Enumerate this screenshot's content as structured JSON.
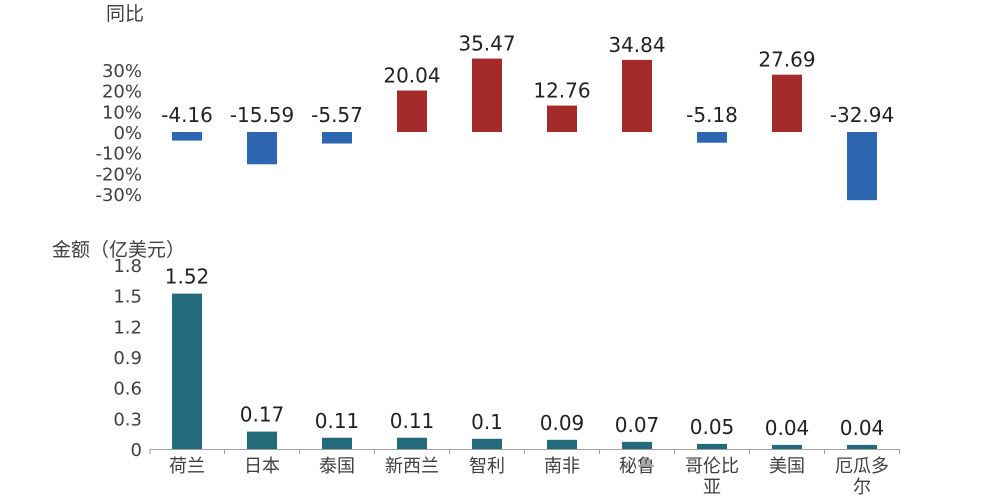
{
  "chart_data": [
    {
      "type": "bar",
      "title": "同比",
      "categories": [
        "荷兰",
        "日本",
        "泰国",
        "新西兰",
        "智利",
        "南非",
        "秘鲁",
        "哥伦比亚",
        "美国",
        "厄瓜多尔"
      ],
      "values": [
        -4.16,
        -15.59,
        -5.57,
        20.04,
        35.47,
        12.76,
        34.84,
        -5.18,
        27.69,
        -32.94
      ],
      "value_labels": [
        "-4.16",
        "-15.59",
        "-5.57",
        "20.04",
        "35.47",
        "12.76",
        "34.84",
        "-5.18",
        "27.69",
        "-32.94"
      ],
      "yticks": [
        "30%",
        "20%",
        "10%",
        "0%",
        "-10%",
        "-20%",
        "-30%"
      ],
      "ytick_values": [
        30,
        20,
        10,
        0,
        -10,
        -20,
        -30
      ],
      "ylim": [
        -35,
        37
      ],
      "colors": {
        "positive": "#A52A2A",
        "negative": "#2E67B1"
      }
    },
    {
      "type": "bar",
      "title": "金额（亿美元）",
      "categories": [
        "荷兰",
        "日本",
        "泰国",
        "新西兰",
        "智利",
        "南非",
        "秘鲁",
        "哥伦比亚",
        "美国",
        "厄瓜多尔"
      ],
      "category_lines": [
        [
          "荷兰"
        ],
        [
          "日本"
        ],
        [
          "泰国"
        ],
        [
          "新西兰"
        ],
        [
          "智利"
        ],
        [
          "南非"
        ],
        [
          "秘鲁"
        ],
        [
          "哥伦比",
          "亚"
        ],
        [
          "美国"
        ],
        [
          "厄瓜多",
          "尔"
        ]
      ],
      "values": [
        1.52,
        0.17,
        0.11,
        0.11,
        0.1,
        0.09,
        0.07,
        0.05,
        0.04,
        0.04
      ],
      "value_labels": [
        "1.52",
        "0.17",
        "0.11",
        "0.11",
        "0.1",
        "0.09",
        "0.07",
        "0.05",
        "0.04",
        "0.04"
      ],
      "yticks": [
        "1.8",
        "1.5",
        "1.2",
        "0.9",
        "0.6",
        "0.3",
        "0"
      ],
      "ytick_values": [
        1.8,
        1.5,
        1.2,
        0.9,
        0.6,
        0.3,
        0
      ],
      "ylim": [
        0,
        1.8
      ],
      "colors": {
        "bar": "#236A7A",
        "axis": "#A0A0A0"
      }
    }
  ]
}
